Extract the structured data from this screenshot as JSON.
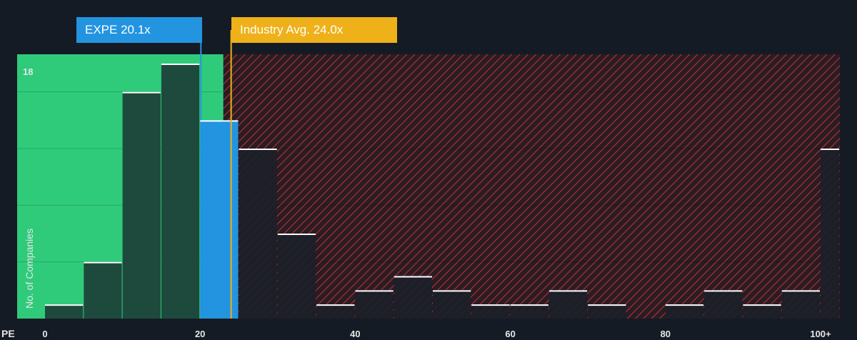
{
  "chart_data": {
    "type": "bar",
    "x_axis_label": "PE",
    "y_axis_label": "No. of Companies",
    "x_ticks": [
      {
        "value": 0,
        "label": "0"
      },
      {
        "value": 20,
        "label": "20"
      },
      {
        "value": 40,
        "label": "40"
      },
      {
        "value": 60,
        "label": "60"
      },
      {
        "value": 80,
        "label": "80"
      },
      {
        "value": 100,
        "label": "100+"
      }
    ],
    "y_ticks": [
      {
        "value": 18,
        "label": "18"
      }
    ],
    "ylim": [
      0,
      18
    ],
    "xlim": [
      0,
      102.5
    ],
    "bins": [
      {
        "start": 0,
        "end": 5,
        "count": 1
      },
      {
        "start": 5,
        "end": 10,
        "count": 4
      },
      {
        "start": 10,
        "end": 15,
        "count": 16
      },
      {
        "start": 15,
        "end": 20,
        "count": 18
      },
      {
        "start": 20,
        "end": 25,
        "count": 14
      },
      {
        "start": 25,
        "end": 30,
        "count": 12
      },
      {
        "start": 30,
        "end": 35,
        "count": 6
      },
      {
        "start": 35,
        "end": 40,
        "count": 1
      },
      {
        "start": 40,
        "end": 45,
        "count": 2
      },
      {
        "start": 45,
        "end": 50,
        "count": 3
      },
      {
        "start": 50,
        "end": 55,
        "count": 2
      },
      {
        "start": 55,
        "end": 60,
        "count": 1
      },
      {
        "start": 60,
        "end": 65,
        "count": 1
      },
      {
        "start": 65,
        "end": 70,
        "count": 2
      },
      {
        "start": 70,
        "end": 75,
        "count": 1
      },
      {
        "start": 75,
        "end": 80,
        "count": 0
      },
      {
        "start": 80,
        "end": 85,
        "count": 1
      },
      {
        "start": 85,
        "end": 90,
        "count": 2
      },
      {
        "start": 90,
        "end": 95,
        "count": 1
      },
      {
        "start": 95,
        "end": 100,
        "count": 2
      },
      {
        "start": 100,
        "end": 102.5,
        "count": 12
      }
    ],
    "company": {
      "ticker": "EXPE",
      "pe": 20.1,
      "label": "EXPE 20.1x",
      "bin_index": 4
    },
    "industry_avg": {
      "pe": 24.0,
      "label": "Industry Avg. 24.0x"
    },
    "undervalued_zone_end": 23.0,
    "grid": true
  },
  "colors": {
    "background": "#151b24",
    "green_zone": "#2fcb7b",
    "green_bar": "#1e4a3d",
    "dark_bar": "#1b2028",
    "highlight_bar": "#2394e0",
    "red_hatch": "#c0343c",
    "red_zone_bg": "#2a1c22",
    "company_callout": "#2394e0",
    "industry_callout": "#eeb11a",
    "bar_cap": "#ffffff",
    "grid": "#2a3a36"
  }
}
